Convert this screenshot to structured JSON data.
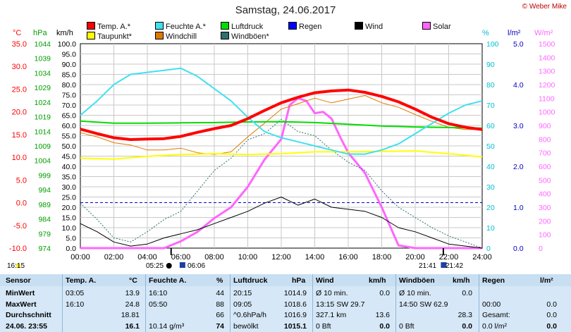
{
  "title": "Samstag, 24.06.2017",
  "copyright": "© Weber Mike",
  "axes_headers": {
    "temp": "°C",
    "press": "hPa",
    "wind": "km/h",
    "hum": "%",
    "rain": "l/m²",
    "solar": "W/m²"
  },
  "legend": [
    {
      "label": "Temp. A.*",
      "color": "#ff0000"
    },
    {
      "label": "Feuchte A.*",
      "color": "#40e0f0"
    },
    {
      "label": "Luftdruck",
      "color": "#00dd00"
    },
    {
      "label": "Regen",
      "color": "#0000ff"
    },
    {
      "label": "Wind",
      "color": "#000000"
    },
    {
      "label": "Solar",
      "color": "#ff66ff"
    },
    {
      "label": "Taupunkt*",
      "color": "#ffff00"
    },
    {
      "label": "Windchill",
      "color": "#e07800"
    },
    {
      "label": "Windböen*",
      "color": "#2f6f6f"
    }
  ],
  "footer": {
    "left": "16:15",
    "sunrise": "05:25",
    "moon": "06:06",
    "sunset": "21:41",
    "moonset": "21:42"
  },
  "chart_data": {
    "type": "line",
    "x_ticks": [
      "00:00",
      "02:00",
      "04:00",
      "06:00",
      "08:00",
      "10:00",
      "12:00",
      "14:00",
      "16:00",
      "18:00",
      "20:00",
      "22:00",
      "24:00"
    ],
    "xlim": [
      0,
      24
    ],
    "axes": {
      "temp": {
        "ticks": [
          "35.0",
          "30.0",
          "25.0",
          "20.0",
          "15.0",
          "10.0",
          "5.0",
          "0.0",
          "-5.0",
          "-10.0"
        ],
        "range": [
          -10,
          35
        ],
        "color": "#ff0000"
      },
      "press": {
        "ticks": [
          "1044",
          "1039",
          "1034",
          "1029",
          "1024",
          "1019",
          "1014",
          "1009",
          "1004",
          "999",
          "994",
          "989",
          "984",
          "979",
          "974"
        ],
        "range": [
          974,
          1044
        ],
        "color": "#00a000"
      },
      "wind": {
        "ticks": [
          "100.0",
          "95.0",
          "90.0",
          "85.0",
          "80.0",
          "75.0",
          "70.0",
          "65.0",
          "60.0",
          "55.0",
          "50.0",
          "45.0",
          "40.0",
          "35.0",
          "30.0",
          "25.0",
          "20.0",
          "15.0",
          "10.0",
          "5.0",
          "0.0"
        ],
        "range": [
          0,
          100
        ],
        "color": "#000000"
      },
      "hum": {
        "ticks": [
          "100",
          "90",
          "80",
          "70",
          "60",
          "50",
          "40",
          "30",
          "20",
          "10",
          "0"
        ],
        "range": [
          0,
          100
        ],
        "color": "#00c0d0"
      },
      "rain": {
        "ticks": [
          "5.0",
          "4.0",
          "3.0",
          "2.0",
          "1.0",
          "0.0"
        ],
        "range": [
          0,
          5
        ],
        "color": "#0000c0"
      },
      "solar": {
        "ticks": [
          "1500",
          "1400",
          "1300",
          "1200",
          "1100",
          "1000",
          "900",
          "800",
          "700",
          "600",
          "500",
          "400",
          "300",
          "200",
          "100",
          "0"
        ],
        "range": [
          0,
          1500
        ],
        "color": "#ff66ff"
      }
    },
    "series": [
      {
        "name": "Temp. A.*",
        "axis": "temp",
        "color": "#ff0000",
        "width": 4,
        "x": [
          0,
          1,
          2,
          3,
          4,
          5,
          6,
          7,
          8,
          9,
          10,
          11,
          12,
          13,
          14,
          15,
          16,
          17,
          18,
          19,
          20,
          21,
          22,
          23,
          24
        ],
        "y": [
          16.2,
          15.2,
          14.3,
          13.9,
          14.0,
          14.1,
          14.6,
          15.5,
          16.3,
          17.0,
          18.5,
          20.3,
          22.0,
          23.2,
          24.2,
          24.6,
          24.8,
          24.3,
          23.4,
          22.2,
          20.6,
          18.8,
          17.4,
          16.6,
          16.1
        ]
      },
      {
        "name": "Feuchte A.*",
        "axis": "hum",
        "color": "#40e0f0",
        "width": 2,
        "x": [
          0,
          1,
          2,
          3,
          4,
          5,
          6,
          7,
          8,
          9,
          10,
          11,
          12,
          13,
          14,
          15,
          16,
          17,
          18,
          19,
          20,
          21,
          22,
          23,
          24
        ],
        "y": [
          65,
          72,
          80,
          85,
          86,
          87,
          88,
          84,
          78,
          72,
          64,
          57,
          54,
          52,
          50,
          48,
          46,
          46,
          48,
          51,
          56,
          61,
          66,
          70,
          72
        ]
      },
      {
        "name": "Luftdruck",
        "axis": "press",
        "color": "#00dd00",
        "width": 2,
        "x": [
          0,
          2,
          4,
          6,
          8,
          10,
          12,
          14,
          16,
          18,
          20,
          22,
          24
        ],
        "y": [
          1017.5,
          1016.8,
          1016.8,
          1016.9,
          1017.0,
          1017.2,
          1017.3,
          1017.0,
          1016.4,
          1015.8,
          1015.5,
          1015.3,
          1015.1
        ]
      },
      {
        "name": "Taupunkt*",
        "axis": "temp",
        "color": "#ffff00",
        "width": 2,
        "x": [
          0,
          2,
          4,
          6,
          8,
          10,
          12,
          14,
          16,
          18,
          20,
          22,
          24
        ],
        "y": [
          9.8,
          9.6,
          10.2,
          10.6,
          10.8,
          10.6,
          10.8,
          11.2,
          11.2,
          11.3,
          11.4,
          10.8,
          10.1
        ]
      },
      {
        "name": "Windchill",
        "axis": "temp",
        "color": "#e07800",
        "width": 1,
        "x": [
          0,
          1,
          2,
          3,
          4,
          5,
          6,
          7,
          8,
          9,
          10,
          11,
          12,
          13,
          14,
          15,
          16,
          17,
          18,
          19,
          20,
          21,
          22,
          23,
          24
        ],
        "y": [
          15.4,
          14.5,
          13.2,
          12.7,
          11.6,
          11.6,
          12.0,
          11.0,
          10.6,
          11.2,
          14.5,
          17.5,
          20.6,
          21.8,
          23.0,
          22.0,
          22.8,
          23.6,
          22.0,
          21.0,
          19.4,
          17.9,
          16.6,
          16.1,
          16.1
        ]
      },
      {
        "name": "Windböen*",
        "axis": "wind",
        "color": "#2f6f6f",
        "width": 1,
        "dash": "2,2",
        "x": [
          0,
          1,
          2,
          3,
          4,
          5,
          6,
          7,
          8,
          9,
          10,
          11,
          12,
          13,
          14,
          15,
          16,
          17,
          18,
          19,
          20,
          21,
          22,
          23,
          24
        ],
        "y": [
          22,
          14,
          5,
          3,
          8,
          14,
          18,
          28,
          38,
          44,
          53,
          56,
          63,
          57,
          55,
          48,
          42,
          38,
          28,
          20,
          15,
          10,
          6,
          3,
          0
        ]
      },
      {
        "name": "Wind",
        "axis": "wind",
        "color": "#000000",
        "width": 1,
        "x": [
          0,
          1,
          2,
          3,
          4,
          5,
          6,
          7,
          8,
          9,
          10,
          11,
          12,
          13,
          14,
          15,
          16,
          17,
          18,
          19,
          20,
          21,
          22,
          23,
          24
        ],
        "y": [
          12,
          8,
          3,
          1,
          2,
          5,
          7,
          9,
          12,
          15,
          18,
          22,
          25,
          21,
          24,
          20,
          19,
          18,
          15,
          10,
          8,
          5,
          2,
          1,
          0
        ]
      },
      {
        "name": "Solar",
        "axis": "solar",
        "color": "#ff66ff",
        "width": 3,
        "x": [
          0,
          5,
          6,
          7,
          8,
          9,
          10,
          11,
          12,
          12.5,
          13,
          13.5,
          14,
          14.5,
          15,
          15.5,
          16,
          17,
          18,
          19,
          20,
          21,
          22,
          24
        ],
        "y": [
          0,
          0,
          50,
          120,
          220,
          300,
          450,
          650,
          800,
          1050,
          1100,
          1080,
          990,
          1000,
          950,
          820,
          700,
          550,
          300,
          20,
          0,
          0,
          0,
          0
        ]
      }
    ],
    "reference_lines": [
      {
        "axis": "temp",
        "value": 0.0,
        "color": "#0000cc",
        "style": "dashed"
      }
    ]
  },
  "table": {
    "headers": [
      "Sensor",
      "Temp. A.",
      "°C",
      "Feuchte A.",
      "%",
      "Luftdruck",
      "hPa",
      "Wind",
      "km/h",
      "Windböen",
      "km/h",
      "Regen",
      "l/m²"
    ],
    "rows": [
      {
        "label": "MinWert",
        "cells": [
          "03:05",
          "13.9",
          "16:10",
          "44",
          "20:15",
          "1014.9",
          "Ø 10 min.",
          "0.0",
          "Ø 10 min.",
          "0.0",
          "",
          ""
        ]
      },
      {
        "label": "MaxWert",
        "cells": [
          "16:10",
          "24.8",
          "05:50",
          "88",
          "09:05",
          "1018.6",
          "13:15   SW 29.7",
          "",
          "14:50   SW 62.9",
          "",
          "00:00",
          "0.0"
        ]
      },
      {
        "label": "Durchschnitt",
        "cells": [
          "",
          "18.81",
          "",
          "66",
          "^0.6hPa/h",
          "1016.9",
          "327.1 km",
          "13.6",
          "",
          "28.3",
          "Gesamt:",
          "0.0"
        ]
      },
      {
        "label": "24.06. 23:55",
        "cells": [
          "",
          "16.1",
          "10.14 g/m³",
          "74",
          "bewölkt",
          "1015.1",
          "0 Bft",
          "0.0",
          "0 Bft",
          "0.0",
          "0.0 l/m²",
          "0.0"
        ]
      }
    ]
  }
}
